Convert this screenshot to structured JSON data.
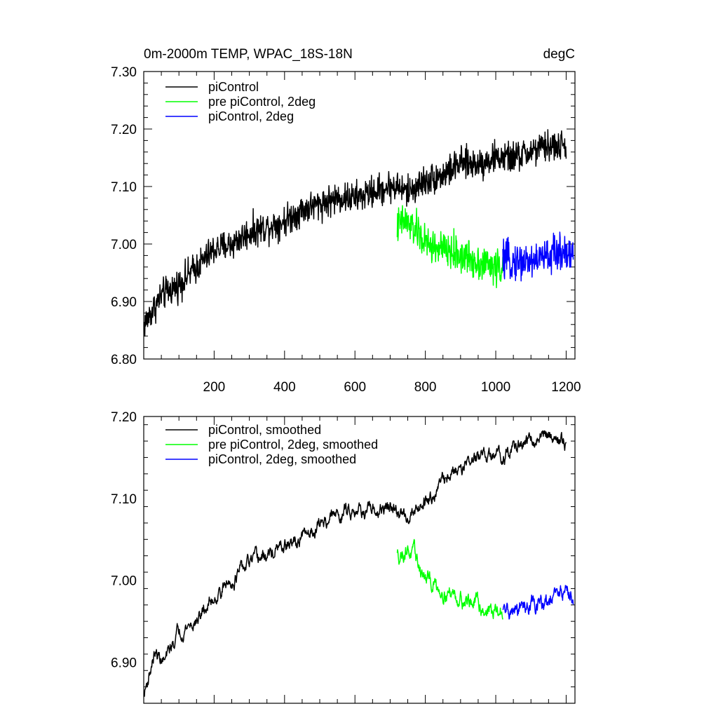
{
  "chart_data": [
    {
      "type": "line",
      "title_left": "0m-2000m TEMP, WPAC_18S-18N",
      "title_right": "degC",
      "xlim": [
        0,
        1225
      ],
      "ylim": [
        6.8,
        7.3
      ],
      "x_ticks": [
        200,
        400,
        600,
        800,
        1000,
        1200
      ],
      "x_tick_labels": [
        "200",
        "400",
        "600",
        "800",
        "1000",
        "1200"
      ],
      "y_ticks": [
        6.8,
        6.9,
        7.0,
        7.1,
        7.2,
        7.3
      ],
      "y_tick_labels": [
        "6.80",
        "6.90",
        "7.00",
        "7.10",
        "7.20",
        "7.30"
      ],
      "legend": [
        "piControl",
        "pre piControl, 2deg",
        "piControl, 2deg"
      ],
      "series": [
        {
          "name": "piControl",
          "color": "#000000",
          "x": [
            1,
            50,
            100,
            150,
            200,
            250,
            300,
            350,
            400,
            450,
            500,
            550,
            600,
            650,
            700,
            720,
            750,
            800,
            850,
            900,
            950,
            1000,
            1050,
            1100,
            1150,
            1200
          ],
          "values": [
            6.86,
            6.91,
            6.93,
            6.96,
            6.99,
            7.0,
            7.02,
            7.03,
            7.04,
            7.06,
            7.07,
            7.08,
            7.08,
            7.09,
            7.1,
            7.1,
            7.09,
            7.11,
            7.12,
            7.14,
            7.14,
            7.15,
            7.15,
            7.16,
            7.17,
            7.17
          ],
          "noise": 0.03
        },
        {
          "name": "pre piControl, 2deg",
          "color": "#00ff00",
          "x": [
            720,
            740,
            760,
            780,
            800,
            850,
            900,
            950,
            1000,
            1020
          ],
          "values": [
            7.03,
            7.04,
            7.03,
            7.02,
            7.0,
            6.99,
            6.98,
            6.97,
            6.96,
            6.96
          ],
          "noise": 0.035
        },
        {
          "name": "piControl, 2deg",
          "color": "#0000ff",
          "x": [
            1020,
            1050,
            1100,
            1150,
            1200,
            1220
          ],
          "values": [
            6.97,
            6.97,
            6.97,
            6.98,
            6.99,
            6.98
          ],
          "noise": 0.035
        }
      ]
    },
    {
      "type": "line",
      "xlim": [
        0,
        1225
      ],
      "ylim": [
        6.85,
        7.2
      ],
      "x_ticks": [
        200,
        400,
        600,
        800,
        1000,
        1200
      ],
      "y_ticks": [
        6.9,
        7.0,
        7.1,
        7.2
      ],
      "y_tick_labels": [
        "6.90",
        "7.00",
        "7.10",
        "7.20"
      ],
      "legend": [
        "piControl, smoothed",
        "pre piControl, 2deg, smoothed",
        "piControl, 2deg, smoothed"
      ],
      "series": [
        {
          "name": "piControl, smoothed",
          "color": "#000000",
          "x": [
            1,
            30,
            60,
            100,
            150,
            200,
            250,
            300,
            350,
            400,
            450,
            500,
            550,
            600,
            650,
            700,
            720,
            750,
            800,
            850,
            900,
            950,
            1000,
            1050,
            1100,
            1150,
            1200
          ],
          "values": [
            6.86,
            6.91,
            6.9,
            6.94,
            6.95,
            6.98,
            7.0,
            7.02,
            7.03,
            7.04,
            7.05,
            7.07,
            7.08,
            7.09,
            7.08,
            7.09,
            7.08,
            7.08,
            7.1,
            7.12,
            7.14,
            7.15,
            7.15,
            7.16,
            7.17,
            7.18,
            7.17
          ],
          "noise": 0.01
        },
        {
          "name": "pre piControl, 2deg, smoothed",
          "color": "#00ff00",
          "x": [
            720,
            750,
            780,
            800,
            850,
            900,
            950,
            1000,
            1020
          ],
          "values": [
            7.03,
            7.04,
            7.02,
            7.0,
            6.99,
            6.98,
            6.97,
            6.96,
            6.96
          ],
          "noise": 0.012
        },
        {
          "name": "piControl, 2deg, smoothed",
          "color": "#0000ff",
          "x": [
            1020,
            1050,
            1100,
            1150,
            1200,
            1220
          ],
          "values": [
            6.96,
            6.96,
            6.97,
            6.97,
            6.99,
            6.98
          ],
          "noise": 0.012
        }
      ]
    }
  ]
}
